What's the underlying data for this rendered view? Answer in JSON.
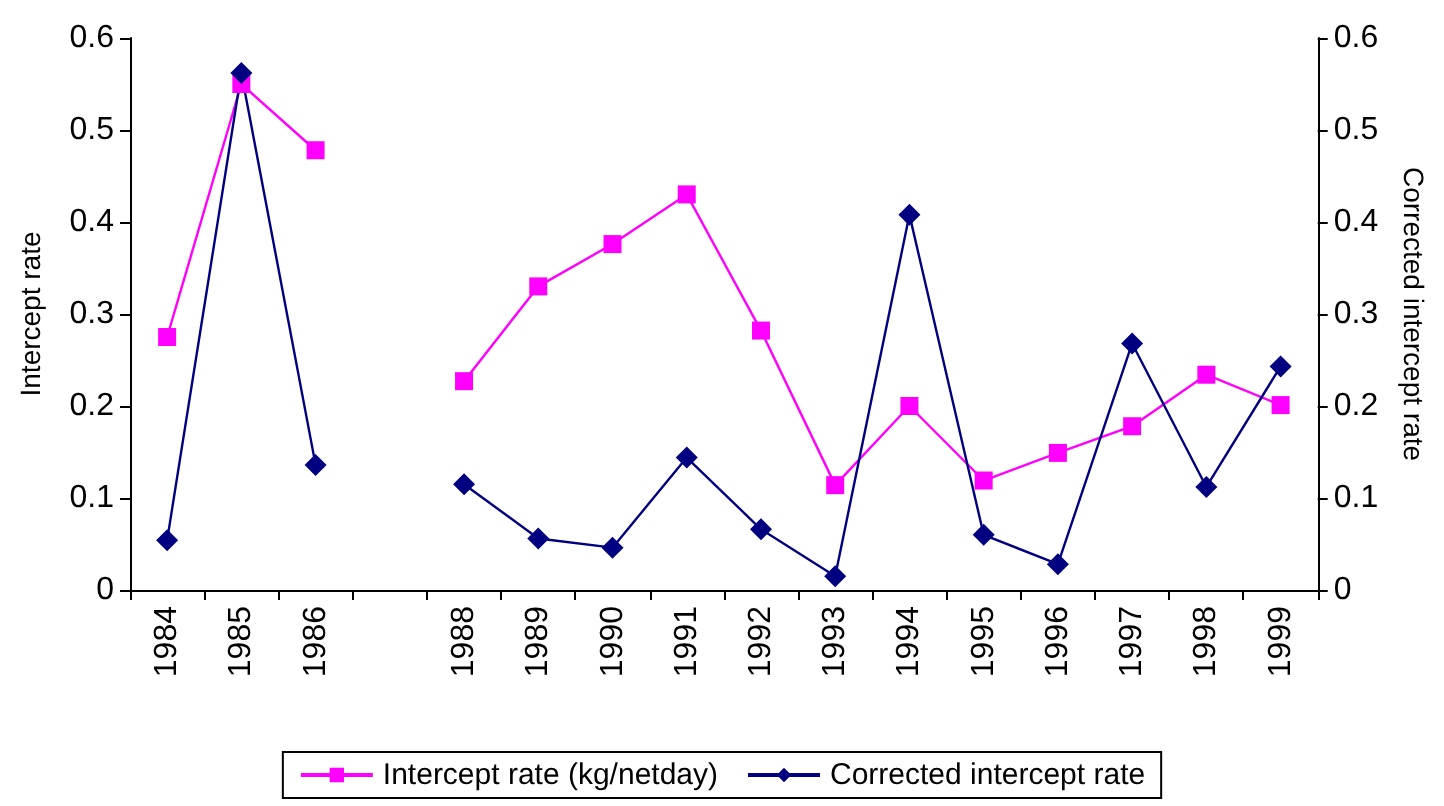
{
  "chart_data": {
    "type": "line",
    "ylabel": "Intercept rate",
    "y2label": "Corrected intercept rate",
    "categories": [
      "1984",
      "1985",
      "1986",
      null,
      "1988",
      "1989",
      "1990",
      "1991",
      "1992",
      "1993",
      "1994",
      "1995",
      "1996",
      "1997",
      "1998",
      "1999"
    ],
    "series": [
      {
        "name": "Intercept rate (kg/netday)",
        "color": "#ff00ff",
        "marker": "square",
        "values": [
          0.275,
          0.55,
          0.478,
          null,
          0.227,
          0.33,
          0.376,
          0.43,
          0.282,
          0.114,
          0.2,
          0.119,
          0.149,
          0.178,
          0.234,
          0.201
        ]
      },
      {
        "name": "Corrected intercept rate",
        "color": "#000080",
        "marker": "diamond",
        "axis": "y2",
        "values": [
          0.054,
          0.562,
          0.136,
          null,
          0.115,
          0.056,
          0.046,
          0.144,
          0.066,
          0.015,
          0.408,
          0.06,
          0.028,
          0.268,
          0.112,
          0.243
        ]
      }
    ],
    "ylim": [
      0,
      0.6
    ],
    "yticks": [
      0,
      0.1,
      0.2,
      0.3,
      0.4,
      0.5,
      0.6
    ],
    "y2lim": [
      0,
      0.6
    ],
    "y2ticks": [
      0,
      0.1,
      0.2,
      0.3,
      0.4,
      0.5,
      0.6
    ],
    "grid": false,
    "legend": "bottom",
    "line_style": "solid"
  }
}
